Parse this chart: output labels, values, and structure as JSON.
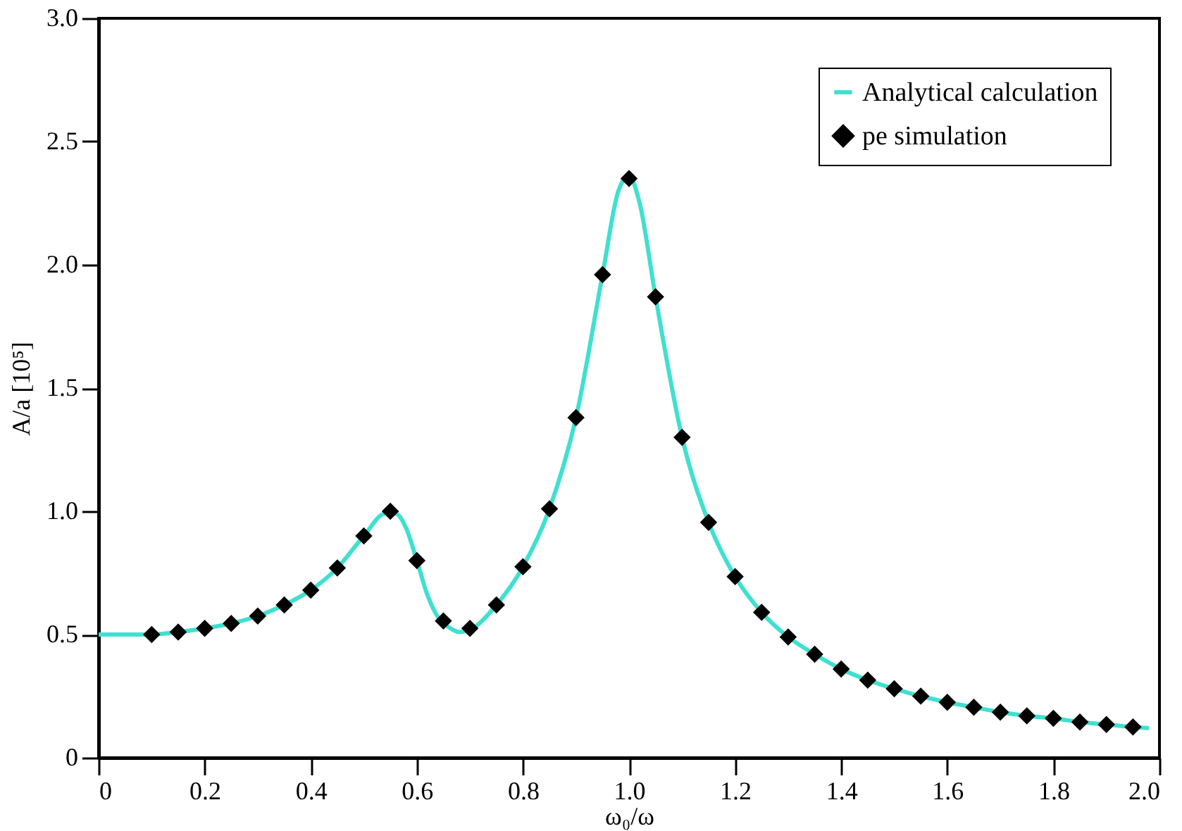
{
  "chart_data": {
    "type": "scatter",
    "xlabel": "ω₀/ω",
    "ylabel": "A/a [10⁵]",
    "xlim": [
      0,
      2
    ],
    "xticks": [
      0,
      0.2,
      0.4,
      0.6,
      0.8,
      {
        "value": 1,
        "label": "1.0"
      },
      1.2,
      1.4,
      1.6,
      1.8,
      {
        "value": 2,
        "label": "2.0"
      }
    ],
    "ylim": [
      0,
      3
    ],
    "yticks": [
      0,
      0.5,
      {
        "value": 1,
        "label": "1.0"
      },
      1.5,
      {
        "value": 2,
        "label": "2.0"
      },
      2.5,
      {
        "value": 3,
        "label": "3.0"
      }
    ],
    "grid": false,
    "legend": "top right",
    "series": [
      {
        "name": "Analytical calculation",
        "type": "line",
        "color": "#40e0d0",
        "marker": "none",
        "line_style": "solid",
        "x": [
          0,
          0.05,
          0.1,
          0.15,
          0.2,
          0.25,
          0.3,
          0.35,
          0.4,
          0.45,
          0.5,
          0.54,
          0.56,
          0.58,
          0.6,
          0.62,
          0.64,
          0.66,
          0.68,
          0.7,
          0.75,
          0.8,
          0.85,
          0.9,
          0.95,
          0.98,
          1.0,
          1.02,
          1.05,
          1.1,
          1.15,
          1.2,
          1.25,
          1.3,
          1.35,
          1.4,
          1.45,
          1.5,
          1.55,
          1.6,
          1.65,
          1.7,
          1.75,
          1.8,
          1.85,
          1.9,
          1.95,
          1.98
        ],
        "values": [
          0.5,
          0.5,
          0.5,
          0.51,
          0.525,
          0.545,
          0.575,
          0.62,
          0.68,
          0.77,
          0.9,
          0.99,
          0.99,
          0.93,
          0.8,
          0.66,
          0.57,
          0.53,
          0.51,
          0.52,
          0.62,
          0.775,
          1.01,
          1.38,
          1.96,
          2.3,
          2.36,
          2.25,
          1.87,
          1.3,
          0.955,
          0.735,
          0.59,
          0.49,
          0.42,
          0.36,
          0.315,
          0.28,
          0.25,
          0.225,
          0.205,
          0.185,
          0.17,
          0.16,
          0.145,
          0.135,
          0.125,
          0.12
        ]
      },
      {
        "name": "pe simulation",
        "type": "scatter",
        "color": "#000000",
        "marker": "diamond",
        "x": [
          0.1,
          0.15,
          0.2,
          0.25,
          0.3,
          0.35,
          0.4,
          0.45,
          0.5,
          0.55,
          0.6,
          0.65,
          0.7,
          0.75,
          0.8,
          0.85,
          0.9,
          0.95,
          1.0,
          1.05,
          1.1,
          1.15,
          1.2,
          1.25,
          1.3,
          1.35,
          1.4,
          1.45,
          1.5,
          1.55,
          1.6,
          1.65,
          1.7,
          1.75,
          1.8,
          1.85,
          1.9,
          1.95
        ],
        "values": [
          0.5,
          0.51,
          0.525,
          0.545,
          0.575,
          0.62,
          0.68,
          0.77,
          0.9,
          1.0,
          0.8,
          0.555,
          0.525,
          0.62,
          0.775,
          1.01,
          1.38,
          1.96,
          2.35,
          1.87,
          1.3,
          0.955,
          0.735,
          0.59,
          0.49,
          0.42,
          0.36,
          0.315,
          0.28,
          0.25,
          0.225,
          0.205,
          0.185,
          0.17,
          0.16,
          0.145,
          0.135,
          0.125
        ]
      }
    ]
  }
}
